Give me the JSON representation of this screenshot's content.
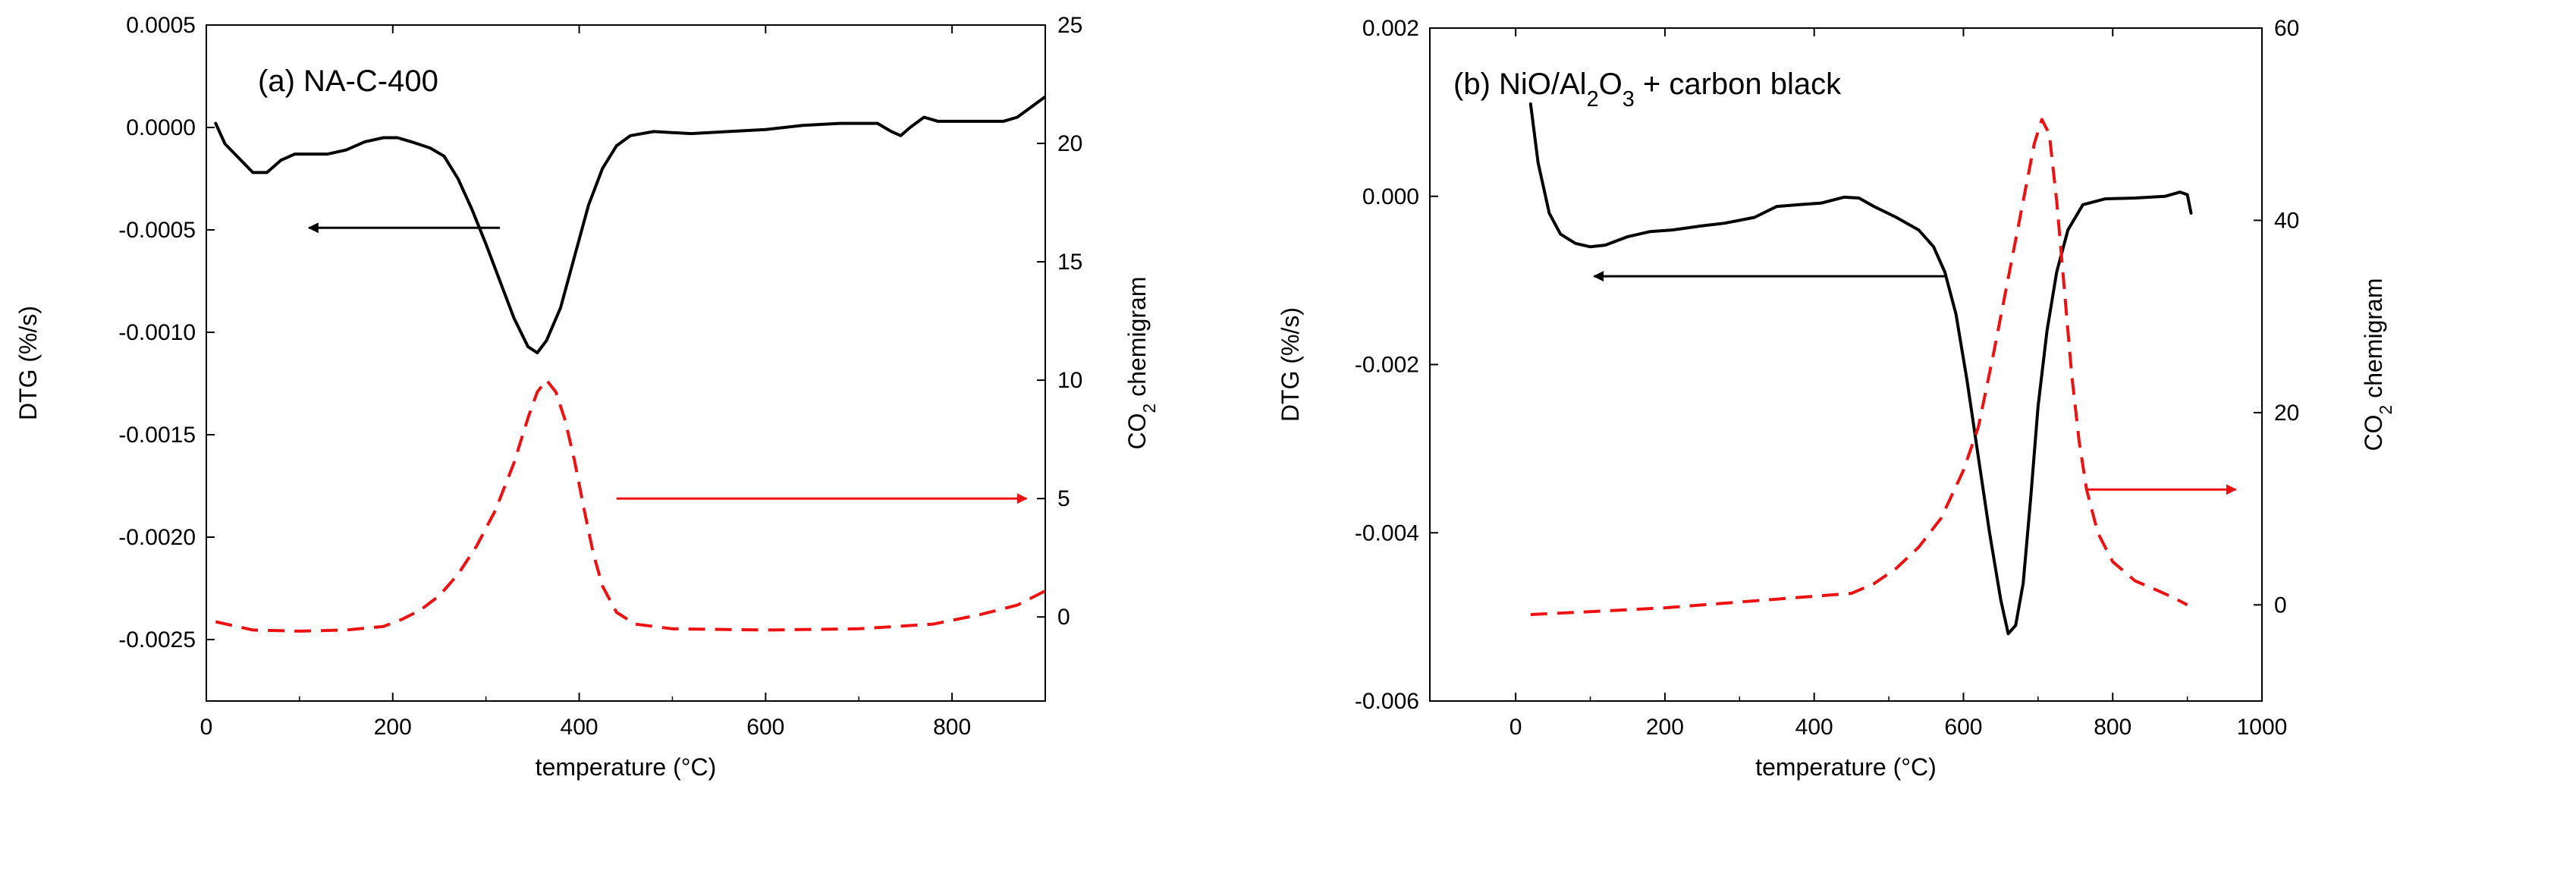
{
  "chart_data": [
    {
      "id": "a",
      "type": "line",
      "title": "(a) NA-C-400",
      "title_parts": [
        {
          "t": "(a) NA-C-400"
        }
      ],
      "xlabel": "temperature (°C)",
      "ylabel_left": "DTG (%/s)",
      "ylabel_right_parts": [
        {
          "t": "CO"
        },
        {
          "t": "2",
          "sub": true
        },
        {
          "t": " chemigram"
        }
      ],
      "xlim": [
        0,
        900
      ],
      "xticks": [
        0,
        200,
        400,
        600,
        800
      ],
      "xtick_labels": [
        "0",
        "200",
        "400",
        "600",
        "800"
      ],
      "ylim_left": [
        -0.0028,
        0.0005
      ],
      "yticks_left": [
        0.0005,
        0.0,
        -0.0005,
        -0.001,
        -0.0015,
        -0.002,
        -0.0025
      ],
      "ytick_labels_left": [
        "0.0005",
        "0.0000",
        "-0.0005",
        "-0.0010",
        "-0.0015",
        "-0.0020",
        "-0.0025"
      ],
      "ylim_right": [
        -3.55,
        25
      ],
      "yticks_right": [
        25,
        20,
        15,
        10,
        5,
        0
      ],
      "ytick_labels_right": [
        "25",
        "20",
        "15",
        "10",
        "5",
        "0"
      ],
      "series": [
        {
          "name": "DTG",
          "axis": "left",
          "color": "#000000",
          "dash": false,
          "points": [
            [
              10,
              2e-05
            ],
            [
              20,
              -8e-05
            ],
            [
              35,
              -0.00015
            ],
            [
              50,
              -0.00022
            ],
            [
              65,
              -0.00022
            ],
            [
              80,
              -0.00016
            ],
            [
              95,
              -0.00013
            ],
            [
              110,
              -0.00013
            ],
            [
              130,
              -0.00013
            ],
            [
              150,
              -0.00011
            ],
            [
              170,
              -7e-05
            ],
            [
              190,
              -5e-05
            ],
            [
              205,
              -5e-05
            ],
            [
              220,
              -7e-05
            ],
            [
              240,
              -0.0001
            ],
            [
              255,
              -0.00014
            ],
            [
              270,
              -0.00025
            ],
            [
              285,
              -0.0004
            ],
            [
              300,
              -0.00057
            ],
            [
              315,
              -0.00075
            ],
            [
              330,
              -0.00093
            ],
            [
              345,
              -0.00107
            ],
            [
              355,
              -0.0011
            ],
            [
              365,
              -0.00104
            ],
            [
              380,
              -0.00088
            ],
            [
              395,
              -0.00063
            ],
            [
              410,
              -0.00038
            ],
            [
              425,
              -0.0002
            ],
            [
              440,
              -9e-05
            ],
            [
              455,
              -4e-05
            ],
            [
              480,
              -2e-05
            ],
            [
              520,
              -3e-05
            ],
            [
              560,
              -2e-05
            ],
            [
              600,
              -1e-05
            ],
            [
              640,
              1e-05
            ],
            [
              680,
              2e-05
            ],
            [
              720,
              2e-05
            ],
            [
              735,
              -2e-05
            ],
            [
              745,
              -4e-05
            ],
            [
              755,
              0.0
            ],
            [
              770,
              5e-05
            ],
            [
              785,
              3e-05
            ],
            [
              800,
              3e-05
            ],
            [
              820,
              3e-05
            ],
            [
              840,
              3e-05
            ],
            [
              855,
              3e-05
            ],
            [
              870,
              5e-05
            ],
            [
              885,
              0.0001
            ],
            [
              900,
              0.00015
            ]
          ]
        },
        {
          "name": "CO2",
          "axis": "right",
          "color": "#ee1111",
          "dash": true,
          "points": [
            [
              10,
              -0.2
            ],
            [
              50,
              -0.55
            ],
            [
              100,
              -0.6
            ],
            [
              150,
              -0.55
            ],
            [
              190,
              -0.4
            ],
            [
              210,
              -0.1
            ],
            [
              230,
              0.3
            ],
            [
              250,
              0.9
            ],
            [
              270,
              1.8
            ],
            [
              290,
              3.0
            ],
            [
              310,
              4.5
            ],
            [
              330,
              6.5
            ],
            [
              345,
              8.4
            ],
            [
              355,
              9.5
            ],
            [
              365,
              10.0
            ],
            [
              375,
              9.5
            ],
            [
              385,
              8.3
            ],
            [
              395,
              6.6
            ],
            [
              405,
              4.6
            ],
            [
              415,
              2.7
            ],
            [
              425,
              1.3
            ],
            [
              440,
              0.2
            ],
            [
              460,
              -0.3
            ],
            [
              500,
              -0.5
            ],
            [
              600,
              -0.55
            ],
            [
              700,
              -0.5
            ],
            [
              780,
              -0.3
            ],
            [
              830,
              0.1
            ],
            [
              870,
              0.5
            ],
            [
              900,
              1.1
            ]
          ]
        }
      ],
      "arrows": [
        {
          "name": "dtg-arrow",
          "axis": "left",
          "color": "#000000",
          "from": [
            315,
            -0.00049
          ],
          "to": [
            110,
            -0.00049
          ]
        },
        {
          "name": "co2-arrow",
          "axis": "right",
          "color": "#ee1111",
          "from": [
            440,
            5.0
          ],
          "to": [
            880,
            5.0
          ]
        }
      ]
    },
    {
      "id": "b",
      "type": "line",
      "title": "(b) NiO/Al2O3 + carbon black",
      "title_parts": [
        {
          "t": "(b) NiO/Al"
        },
        {
          "t": "2",
          "sub": true
        },
        {
          "t": "O"
        },
        {
          "t": "3",
          "sub": true
        },
        {
          "t": " + carbon black"
        }
      ],
      "xlabel": "temperature (°C)",
      "ylabel_left": "DTG (%/s)",
      "ylabel_right_parts": [
        {
          "t": "CO"
        },
        {
          "t": "2",
          "sub": true
        },
        {
          "t": " chemigram"
        }
      ],
      "xlim": [
        -115,
        1000
      ],
      "xticks": [
        0,
        200,
        400,
        600,
        800,
        1000
      ],
      "xtick_labels": [
        "0",
        "200",
        "400",
        "600",
        "800",
        "1000"
      ],
      "ylim_left": [
        -0.006,
        0.002
      ],
      "yticks_left": [
        0.002,
        0.0,
        -0.002,
        -0.004,
        -0.006
      ],
      "ytick_labels_left": [
        "0.002",
        "0.000",
        "-0.002",
        "-0.004",
        "-0.006"
      ],
      "ylim_right": [
        -10,
        60
      ],
      "yticks_right": [
        60,
        40,
        20,
        0
      ],
      "ytick_labels_right": [
        "60",
        "40",
        "20",
        "0"
      ],
      "series": [
        {
          "name": "DTG",
          "axis": "left",
          "color": "#000000",
          "dash": false,
          "points": [
            [
              20,
              0.0011
            ],
            [
              30,
              0.0004
            ],
            [
              45,
              -0.0002
            ],
            [
              60,
              -0.00045
            ],
            [
              80,
              -0.00056
            ],
            [
              100,
              -0.0006
            ],
            [
              120,
              -0.00058
            ],
            [
              150,
              -0.00048
            ],
            [
              180,
              -0.00042
            ],
            [
              210,
              -0.0004
            ],
            [
              250,
              -0.00035
            ],
            [
              280,
              -0.00032
            ],
            [
              320,
              -0.00025
            ],
            [
              350,
              -0.00012
            ],
            [
              380,
              -0.0001
            ],
            [
              410,
              -8e-05
            ],
            [
              440,
              -1e-05
            ],
            [
              460,
              -2e-05
            ],
            [
              480,
              -0.00012
            ],
            [
              510,
              -0.00025
            ],
            [
              540,
              -0.0004
            ],
            [
              560,
              -0.0006
            ],
            [
              575,
              -0.0009
            ],
            [
              590,
              -0.0014
            ],
            [
              605,
              -0.0022
            ],
            [
              620,
              -0.0031
            ],
            [
              635,
              -0.004
            ],
            [
              650,
              -0.0048
            ],
            [
              660,
              -0.0052
            ],
            [
              670,
              -0.0051
            ],
            [
              680,
              -0.0046
            ],
            [
              690,
              -0.0036
            ],
            [
              700,
              -0.0025
            ],
            [
              712,
              -0.0016
            ],
            [
              725,
              -0.0009
            ],
            [
              740,
              -0.0004
            ],
            [
              760,
              -0.0001
            ],
            [
              790,
              -3e-05
            ],
            [
              830,
              -2e-05
            ],
            [
              870,
              0.0
            ],
            [
              890,
              5e-05
            ],
            [
              900,
              2e-05
            ],
            [
              905,
              -0.0002
            ]
          ]
        },
        {
          "name": "CO2",
          "axis": "right",
          "color": "#ee1111",
          "dash": true,
          "points": [
            [
              20,
              -1.0
            ],
            [
              100,
              -0.7
            ],
            [
              200,
              -0.3
            ],
            [
              300,
              0.3
            ],
            [
              350,
              0.6
            ],
            [
              400,
              0.9
            ],
            [
              450,
              1.2
            ],
            [
              480,
              2.2
            ],
            [
              510,
              3.8
            ],
            [
              540,
              6.0
            ],
            [
              570,
              9.0
            ],
            [
              600,
              14.0
            ],
            [
              620,
              18.5
            ],
            [
              640,
              26.0
            ],
            [
              660,
              34.0
            ],
            [
              680,
              42.0
            ],
            [
              695,
              48.0
            ],
            [
              705,
              50.5
            ],
            [
              715,
              49.0
            ],
            [
              725,
              42.0
            ],
            [
              735,
              33.0
            ],
            [
              745,
              24.0
            ],
            [
              755,
              17.0
            ],
            [
              765,
              12.0
            ],
            [
              780,
              7.5
            ],
            [
              800,
              4.5
            ],
            [
              830,
              2.5
            ],
            [
              860,
              1.5
            ],
            [
              880,
              0.8
            ],
            [
              900,
              0.0
            ]
          ]
        }
      ],
      "arrows": [
        {
          "name": "dtg-arrow",
          "axis": "left",
          "color": "#000000",
          "from": [
            575,
            -0.00095
          ],
          "to": [
            105,
            -0.00095
          ]
        },
        {
          "name": "co2-arrow",
          "axis": "right",
          "color": "#ee1111",
          "from": [
            765,
            12.0
          ],
          "to": [
            965,
            12.0
          ]
        }
      ]
    }
  ]
}
